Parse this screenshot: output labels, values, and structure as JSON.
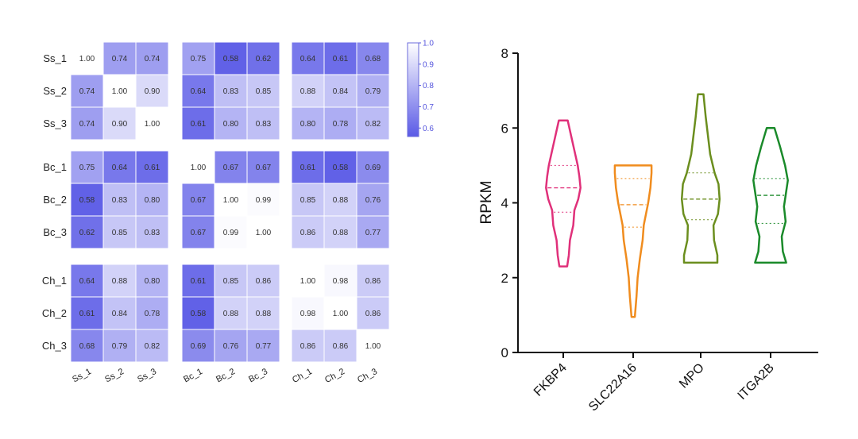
{
  "chart_data": [
    {
      "type": "heatmap",
      "title": "",
      "row_labels": [
        "Ss_1",
        "Ss_2",
        "Ss_3",
        "Bc_1",
        "Bc_2",
        "Bc_3",
        "Ch_1",
        "Ch_2",
        "Ch_3"
      ],
      "col_labels": [
        "Ss_1",
        "Ss_2",
        "Ss_3",
        "Bc_1",
        "Bc_2",
        "Bc_3",
        "Ch_1",
        "Ch_2",
        "Ch_3"
      ],
      "values": [
        [
          "1.00",
          "0.74",
          "0.74",
          "0.75",
          "0.58",
          "0.62",
          "0.64",
          "0.61",
          "0.68"
        ],
        [
          "0.74",
          "1.00",
          "0.90",
          "0.64",
          "0.83",
          "0.85",
          "0.88",
          "0.84",
          "0.79"
        ],
        [
          "0.74",
          "0.90",
          "1.00",
          "0.61",
          "0.80",
          "0.83",
          "0.80",
          "0.78",
          "0.82"
        ],
        [
          "0.75",
          "0.64",
          "0.61",
          "1.00",
          "0.67",
          "0.67",
          "0.61",
          "0.58",
          "0.69"
        ],
        [
          "0.58",
          "0.83",
          "0.80",
          "0.67",
          "1.00",
          "0.99",
          "0.85",
          "0.88",
          "0.76"
        ],
        [
          "0.62",
          "0.85",
          "0.83",
          "0.67",
          "0.99",
          "1.00",
          "0.86",
          "0.88",
          "0.77"
        ],
        [
          "0.64",
          "0.88",
          "0.80",
          "0.61",
          "0.85",
          "0.86",
          "1.00",
          "0.98",
          "0.86"
        ],
        [
          "0.61",
          "0.84",
          "0.78",
          "0.58",
          "0.88",
          "0.88",
          "0.98",
          "1.00",
          "0.86"
        ],
        [
          "0.68",
          "0.79",
          "0.82",
          "0.69",
          "0.76",
          "0.77",
          "0.86",
          "0.86",
          "1.00"
        ]
      ],
      "color_scale": {
        "min": 0.56,
        "max": 1.0,
        "low_color": "#5a5ae6",
        "high_color": "#ffffff"
      },
      "colorbar_ticks": [
        "1.0",
        "0.9",
        "0.8",
        "0.7",
        "0.6"
      ]
    },
    {
      "type": "violin",
      "title": "",
      "ylabel": "RPKM",
      "ylim": [
        0,
        8
      ],
      "yticks": [
        "0",
        "2",
        "4",
        "6",
        "8"
      ],
      "categories": [
        "FKBP4",
        "SLC22A16",
        "MPO",
        "ITGA2B"
      ],
      "series": [
        {
          "category": "FKBP4",
          "color": "#e0307a",
          "min": 2.3,
          "max": 6.2,
          "q1": 3.75,
          "median": 4.4,
          "q3": 5.0,
          "profile": [
            [
              2.3,
              0.07
            ],
            [
              2.6,
              0.1
            ],
            [
              3.0,
              0.12
            ],
            [
              3.4,
              0.18
            ],
            [
              3.8,
              0.2
            ],
            [
              4.1,
              0.27
            ],
            [
              4.4,
              0.31
            ],
            [
              4.7,
              0.29
            ],
            [
              5.0,
              0.26
            ],
            [
              5.4,
              0.2
            ],
            [
              5.8,
              0.14
            ],
            [
              6.2,
              0.08
            ]
          ]
        },
        {
          "category": "SLC22A16",
          "color": "#f08c1e",
          "min": 0.95,
          "max": 5.0,
          "q1": 3.35,
          "median": 3.95,
          "q3": 4.65,
          "profile": [
            [
              0.95,
              0.03
            ],
            [
              1.5,
              0.06
            ],
            [
              2.0,
              0.08
            ],
            [
              2.5,
              0.12
            ],
            [
              3.0,
              0.17
            ],
            [
              3.4,
              0.19
            ],
            [
              3.7,
              0.23
            ],
            [
              4.0,
              0.27
            ],
            [
              4.4,
              0.31
            ],
            [
              4.8,
              0.33
            ],
            [
              5.0,
              0.33
            ]
          ]
        },
        {
          "category": "MPO",
          "color": "#6b8e1e",
          "min": 2.4,
          "max": 6.9,
          "q1": 3.55,
          "median": 4.1,
          "q3": 4.8,
          "profile": [
            [
              2.4,
              0.3
            ],
            [
              2.6,
              0.3
            ],
            [
              3.0,
              0.24
            ],
            [
              3.4,
              0.23
            ],
            [
              3.7,
              0.31
            ],
            [
              4.1,
              0.34
            ],
            [
              4.5,
              0.32
            ],
            [
              4.8,
              0.25
            ],
            [
              5.3,
              0.17
            ],
            [
              5.8,
              0.13
            ],
            [
              6.3,
              0.09
            ],
            [
              6.9,
              0.05
            ]
          ]
        },
        {
          "category": "ITGA2B",
          "color": "#1a8a2a",
          "min": 2.4,
          "max": 6.0,
          "q1": 3.45,
          "median": 4.2,
          "q3": 4.65,
          "profile": [
            [
              2.4,
              0.28
            ],
            [
              2.7,
              0.22
            ],
            [
              3.1,
              0.2
            ],
            [
              3.5,
              0.27
            ],
            [
              3.9,
              0.24
            ],
            [
              4.2,
              0.27
            ],
            [
              4.6,
              0.31
            ],
            [
              5.0,
              0.26
            ],
            [
              5.5,
              0.17
            ],
            [
              6.0,
              0.07
            ]
          ]
        }
      ]
    }
  ]
}
